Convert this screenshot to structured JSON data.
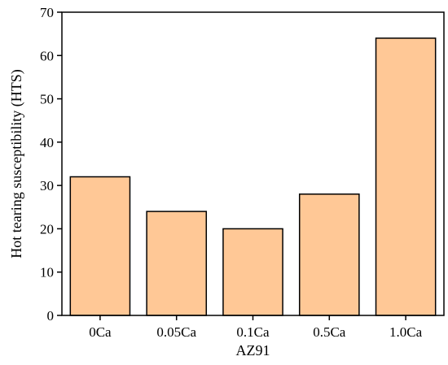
{
  "chart_data": {
    "type": "bar",
    "categories": [
      "0Ca",
      "0.05Ca",
      "0.1Ca",
      "0.5Ca",
      "1.0Ca"
    ],
    "values": [
      32,
      24,
      20,
      28,
      64
    ],
    "title": "",
    "xlabel": "AZ91",
    "ylabel": "Hot tearing susceptibility (HTS)",
    "ylim": [
      0,
      70
    ],
    "yticks": [
      0,
      10,
      20,
      30,
      40,
      50,
      60,
      70
    ],
    "grid": false,
    "legend": "none",
    "bar_fill": "#FFC896",
    "bar_edge": "#000000"
  }
}
